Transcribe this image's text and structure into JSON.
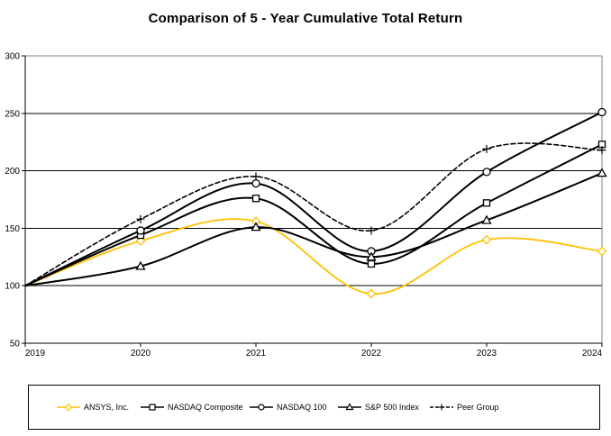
{
  "chart_data": {
    "type": "line",
    "title": "Comparison of 5 - Year Cumulative Total Return",
    "x": [
      "2019",
      "2020",
      "2021",
      "2022",
      "2023",
      "2024"
    ],
    "series": [
      {
        "name": "ANSYS, Inc.",
        "values": [
          100,
          139,
          156,
          93,
          140,
          130
        ],
        "color": "#FFC000",
        "line_style": "solid",
        "marker": "diamond"
      },
      {
        "name": "NASDAQ Composite",
        "values": [
          100,
          144,
          176,
          119,
          172,
          223
        ],
        "color": "#000000",
        "line_style": "solid",
        "marker": "square"
      },
      {
        "name": "NASDAQ 100",
        "values": [
          100,
          148,
          189,
          130,
          199,
          251
        ],
        "color": "#000000",
        "line_style": "solid",
        "marker": "circle"
      },
      {
        "name": "S&P 500 Index",
        "values": [
          100,
          117,
          151,
          125,
          157,
          198
        ],
        "color": "#000000",
        "line_style": "solid",
        "marker": "triangle"
      },
      {
        "name": "Peer Group",
        "values": [
          100,
          158,
          195,
          148,
          219,
          218
        ],
        "color": "#000000",
        "line_style": "dashed",
        "marker": "plus"
      }
    ],
    "xlabel": "",
    "ylabel": "",
    "ylim": [
      50,
      300
    ],
    "yticks": [
      50,
      100,
      150,
      200,
      250,
      300
    ],
    "grid": "horizontal",
    "smoothed": true,
    "legend_position": "bottom"
  },
  "colors": {
    "accent_gold": "#FFC000",
    "axis": "#000000",
    "frame_gray": "#808080",
    "background": "#FFFFFF"
  }
}
